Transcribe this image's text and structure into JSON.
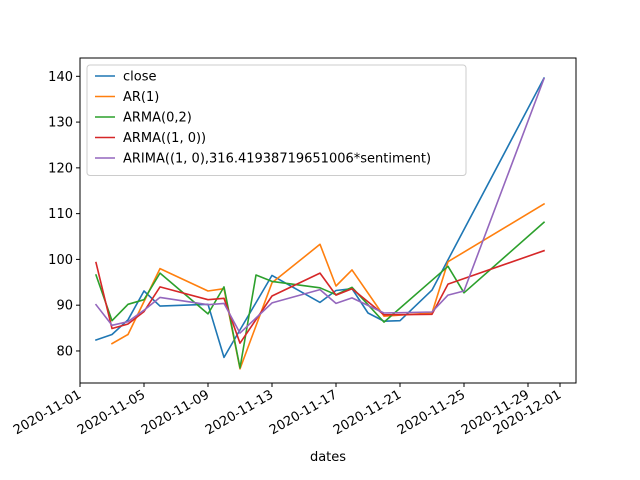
{
  "chart_data": {
    "type": "line",
    "xlabel": "dates",
    "ylabel": "",
    "title": "",
    "xlim": [
      "2020-11-01",
      "2020-12-02"
    ],
    "ylim": [
      73,
      144
    ],
    "x_ticks": [
      "2020-11-01",
      "2020-11-05",
      "2020-11-09",
      "2020-11-13",
      "2020-11-17",
      "2020-11-21",
      "2020-11-25",
      "2020-11-29",
      "2020-12-01"
    ],
    "y_ticks": [
      80,
      90,
      100,
      110,
      120,
      130,
      140
    ],
    "grid": false,
    "legend_position": "top-left",
    "series": [
      {
        "name": "close",
        "color": "#1f77b4",
        "points": [
          {
            "x": "2020-11-02",
            "y": 82.4
          },
          {
            "x": "2020-11-03",
            "y": 83.6
          },
          {
            "x": "2020-11-04",
            "y": 86.8
          },
          {
            "x": "2020-11-05",
            "y": 93.1
          },
          {
            "x": "2020-11-06",
            "y": 89.8
          },
          {
            "x": "2020-11-09",
            "y": 90.2
          },
          {
            "x": "2020-11-10",
            "y": 78.6
          },
          {
            "x": "2020-11-11",
            "y": 84.6
          },
          {
            "x": "2020-11-13",
            "y": 96.5
          },
          {
            "x": "2020-11-16",
            "y": 90.6
          },
          {
            "x": "2020-11-17",
            "y": 93.2
          },
          {
            "x": "2020-11-18",
            "y": 93.6
          },
          {
            "x": "2020-11-19",
            "y": 88.3
          },
          {
            "x": "2020-11-20",
            "y": 86.5
          },
          {
            "x": "2020-11-21",
            "y": 86.6
          },
          {
            "x": "2020-11-23",
            "y": 93.3
          },
          {
            "x": "2020-11-30",
            "y": 139.6
          }
        ]
      },
      {
        "name": "AR(1)",
        "color": "#ff7f0e",
        "points": [
          {
            "x": "2020-11-03",
            "y": 81.6
          },
          {
            "x": "2020-11-04",
            "y": 83.6
          },
          {
            "x": "2020-11-06",
            "y": 98.0
          },
          {
            "x": "2020-11-09",
            "y": 93.1
          },
          {
            "x": "2020-11-10",
            "y": 93.6
          },
          {
            "x": "2020-11-11",
            "y": 76.1
          },
          {
            "x": "2020-11-13",
            "y": 94.9
          },
          {
            "x": "2020-11-16",
            "y": 103.3
          },
          {
            "x": "2020-11-17",
            "y": 94.2
          },
          {
            "x": "2020-11-18",
            "y": 97.7
          },
          {
            "x": "2020-11-20",
            "y": 87.6
          },
          {
            "x": "2020-11-23",
            "y": 88.3
          },
          {
            "x": "2020-11-24",
            "y": 99.5
          },
          {
            "x": "2020-11-30",
            "y": 112.1
          }
        ]
      },
      {
        "name": "ARMA(0,2)",
        "color": "#2ca02c",
        "points": [
          {
            "x": "2020-11-02",
            "y": 96.6
          },
          {
            "x": "2020-11-03",
            "y": 86.6
          },
          {
            "x": "2020-11-04",
            "y": 90.2
          },
          {
            "x": "2020-11-05",
            "y": 91.2
          },
          {
            "x": "2020-11-06",
            "y": 97.0
          },
          {
            "x": "2020-11-09",
            "y": 88.1
          },
          {
            "x": "2020-11-10",
            "y": 94.0
          },
          {
            "x": "2020-11-11",
            "y": 76.3
          },
          {
            "x": "2020-11-12",
            "y": 96.6
          },
          {
            "x": "2020-11-13",
            "y": 95.2
          },
          {
            "x": "2020-11-16",
            "y": 93.8
          },
          {
            "x": "2020-11-17",
            "y": 92.3
          },
          {
            "x": "2020-11-18",
            "y": 93.9
          },
          {
            "x": "2020-11-20",
            "y": 86.3
          },
          {
            "x": "2020-11-24",
            "y": 98.5
          },
          {
            "x": "2020-11-25",
            "y": 92.7
          },
          {
            "x": "2020-11-30",
            "y": 108.1
          }
        ]
      },
      {
        "name": "ARMA((1, 0))",
        "color": "#d62728",
        "points": [
          {
            "x": "2020-11-02",
            "y": 99.3
          },
          {
            "x": "2020-11-03",
            "y": 84.9
          },
          {
            "x": "2020-11-04",
            "y": 85.9
          },
          {
            "x": "2020-11-05",
            "y": 88.6
          },
          {
            "x": "2020-11-06",
            "y": 94.0
          },
          {
            "x": "2020-11-09",
            "y": 91.2
          },
          {
            "x": "2020-11-10",
            "y": 91.5
          },
          {
            "x": "2020-11-11",
            "y": 81.7
          },
          {
            "x": "2020-11-13",
            "y": 92.0
          },
          {
            "x": "2020-11-16",
            "y": 97.0
          },
          {
            "x": "2020-11-17",
            "y": 92.2
          },
          {
            "x": "2020-11-18",
            "y": 93.6
          },
          {
            "x": "2020-11-20",
            "y": 87.9
          },
          {
            "x": "2020-11-23",
            "y": 88.0
          },
          {
            "x": "2020-11-24",
            "y": 94.6
          },
          {
            "x": "2020-11-30",
            "y": 101.9
          }
        ]
      },
      {
        "name": "ARIMA((1, 0),316.41938719651006*sentiment)",
        "color": "#9467bd",
        "points": [
          {
            "x": "2020-11-02",
            "y": 90.1
          },
          {
            "x": "2020-11-03",
            "y": 85.6
          },
          {
            "x": "2020-11-04",
            "y": 86.4
          },
          {
            "x": "2020-11-05",
            "y": 88.9
          },
          {
            "x": "2020-11-06",
            "y": 91.7
          },
          {
            "x": "2020-11-09",
            "y": 90.1
          },
          {
            "x": "2020-11-10",
            "y": 90.4
          },
          {
            "x": "2020-11-11",
            "y": 83.9
          },
          {
            "x": "2020-11-13",
            "y": 90.5
          },
          {
            "x": "2020-11-16",
            "y": 93.4
          },
          {
            "x": "2020-11-17",
            "y": 90.4
          },
          {
            "x": "2020-11-18",
            "y": 91.6
          },
          {
            "x": "2020-11-20",
            "y": 88.3
          },
          {
            "x": "2020-11-23",
            "y": 88.5
          },
          {
            "x": "2020-11-24",
            "y": 92.2
          },
          {
            "x": "2020-11-25",
            "y": 93.1
          },
          {
            "x": "2020-11-30",
            "y": 139.5
          }
        ]
      }
    ]
  }
}
